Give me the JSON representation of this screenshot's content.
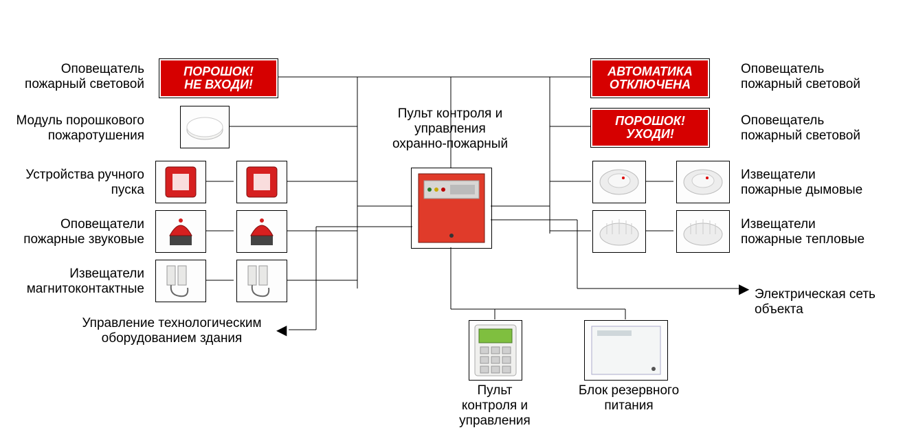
{
  "colors": {
    "sign_bg": "#d60000",
    "sign_text": "#ffffff",
    "panel_bg": "#e03b2a",
    "panel_face": "#d8d6d4",
    "keypad_body": "#f0f0ee",
    "keypad_screen": "#7fbf3f",
    "psu_body": "#f4f6f6",
    "border": "#000000",
    "red_device": "#d62020",
    "gray_device": "#dcdcdc",
    "smoke_detector": "#ededed"
  },
  "labels": {
    "center_title": "Пульт контроля и\nуправления\nохранно-пожарный",
    "left": {
      "r1": "Оповещатель\nпожарный световой",
      "r2": "Модуль порошкового\nпожаротушения",
      "r3": "Устройства ручного\nпуска",
      "r4": "Оповещатели\nпожарные звуковые",
      "r5": "Извещатели\nмагнитоконтактные",
      "bottom": "Управление технологическим\nоборудованием здания"
    },
    "right": {
      "r1": "Оповещатель\nпожарный световой",
      "r2": "Оповещатель\nпожарный световой",
      "r3": "Извещатели\nпожарные дымовые",
      "r4": "Извещатели\nпожарные тепловые",
      "r5": "Электрическая сеть\nобъекта"
    },
    "bottom": {
      "keypad": "Пульт\nконтроля и\nуправления",
      "psu": "Блок резервного\nпитания"
    }
  },
  "signs": {
    "left_top": "ПОРОШОК!\nНЕ ВХОДИ!",
    "right_top": "АВТОМАТИКА\nОТКЛЮЧЕНА",
    "right_2": "ПОРОШОК!\nУХОДИ!"
  },
  "diagram": {
    "box_border_w": 1,
    "line_w": 1,
    "font_size_label": 19,
    "font_size_sign": 18
  }
}
